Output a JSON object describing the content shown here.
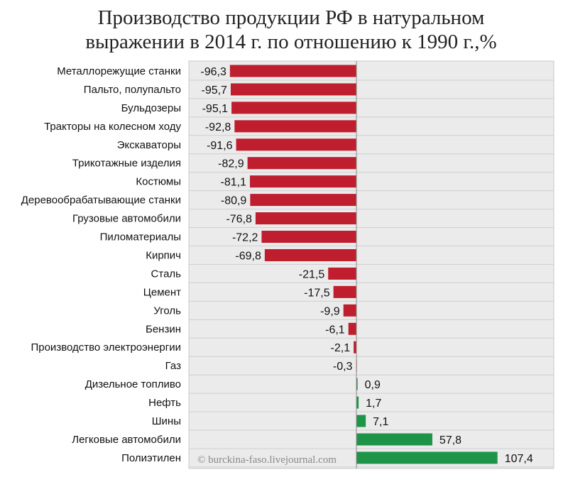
{
  "chart_data": {
    "type": "bar",
    "orientation": "horizontal",
    "title_line1": "Производство продукции РФ в натуральном",
    "title_line2": "выражении в 2014 г. по отношению к 1990 г.,%",
    "categories": [
      "Металлорежущие станки",
      "Пальто, полупальто",
      "Бульдозеры",
      "Тракторы на колесном ходу",
      "Экскаваторы",
      "Трикотажные изделия",
      "Костюмы",
      "Деревообрабатывающие  станки",
      "Грузовые автомобили",
      "Пиломатериалы",
      "Кирпич",
      "Сталь",
      "Цемент",
      "Уголь",
      "Бензин",
      "Производство электроэнергии",
      "Газ",
      "Дизельное топливо",
      "Нефть",
      "Шины",
      "Легковые автомобили",
      "Полиэтилен"
    ],
    "values": [
      -96.3,
      -95.7,
      -95.1,
      -92.8,
      -91.6,
      -82.9,
      -81.1,
      -80.9,
      -76.8,
      -72.2,
      -69.8,
      -21.5,
      -17.5,
      -9.9,
      -6.1,
      -2.1,
      -0.3,
      0.9,
      1.7,
      7.1,
      57.8,
      107.4
    ],
    "value_labels": [
      "-96,3",
      "-95,7",
      "-95,1",
      "-92,8",
      "-91,6",
      "-82,9",
      "-81,1",
      "-80,9",
      "-76,8",
      "-72,2",
      "-69,8",
      "-21,5",
      "-17,5",
      "-9,9",
      "-6,1",
      "-2,1",
      "-0,3",
      "0,9",
      "1,7",
      "7,1",
      "57,8",
      "107,4"
    ],
    "xlim": [
      -100,
      110
    ],
    "xlabel": "",
    "ylabel": "",
    "grid": true,
    "negative_color": "#be1e2d",
    "positive_color": "#1e9448",
    "watermark": "© burckina-faso.livejournal.com"
  }
}
